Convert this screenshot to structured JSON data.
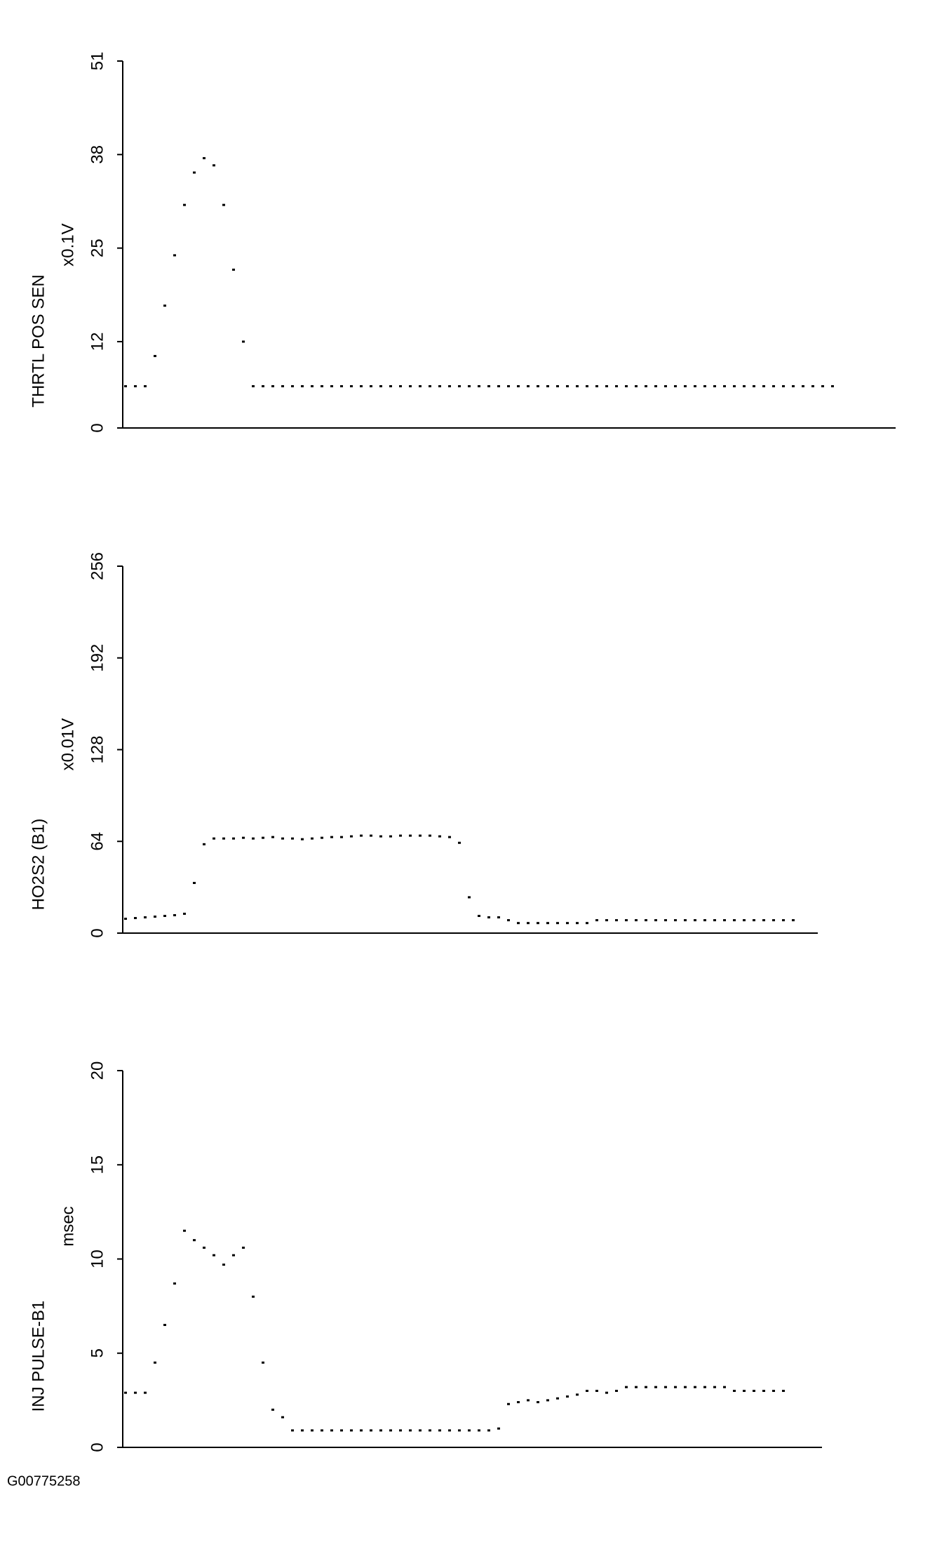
{
  "chart_data": [
    {
      "type": "line",
      "y_label": "THRTL POS SEN",
      "unit_label": "x0.1V",
      "color": "#000000",
      "ylim": [
        0,
        51
      ],
      "yticks": [
        0,
        12,
        25,
        38,
        51
      ],
      "values": [
        5.8,
        5.8,
        5.8,
        10,
        17,
        24,
        31,
        35.5,
        37.5,
        36.5,
        31,
        22,
        12,
        5.8,
        5.8,
        5.8,
        5.8,
        5.8,
        5.8,
        5.8,
        5.8,
        5.8,
        5.8,
        5.8,
        5.8,
        5.8,
        5.8,
        5.8,
        5.8,
        5.8,
        5.8,
        5.8,
        5.8,
        5.8,
        5.8,
        5.8,
        5.8,
        5.8,
        5.8,
        5.8,
        5.8,
        5.8,
        5.8,
        5.8,
        5.8,
        5.8,
        5.8,
        5.8,
        5.8,
        5.8,
        5.8,
        5.8,
        5.8,
        5.8,
        5.8,
        5.8,
        5.8,
        5.8,
        5.8,
        5.8,
        5.8,
        5.8,
        5.8,
        5.8,
        5.8,
        5.8,
        5.8,
        5.8,
        5.8,
        5.8,
        5.8,
        5.8,
        5.8
      ]
    },
    {
      "type": "line",
      "y_label": "HO2S2 (B1)",
      "unit_label": "x0.01V",
      "color": "#000000",
      "ylim": [
        0,
        256
      ],
      "yticks": [
        0,
        64,
        128,
        192,
        256
      ],
      "values": [
        10,
        10.5,
        11,
        11.5,
        12,
        12.5,
        13.5,
        35,
        62,
        66,
        66,
        66,
        66.5,
        66,
        66.5,
        67,
        66,
        66,
        65.5,
        66,
        66.5,
        67,
        67,
        67.5,
        68,
        68,
        67.5,
        67.5,
        68,
        68,
        68,
        68,
        67.5,
        67,
        63,
        25,
        12,
        11,
        11,
        9,
        7,
        7,
        7,
        7,
        7,
        7,
        7,
        7,
        9,
        9,
        9,
        9,
        9,
        9,
        9,
        9,
        9,
        9,
        9,
        9,
        9,
        9,
        9,
        9,
        9,
        9,
        9,
        9,
        9
      ]
    },
    {
      "type": "line",
      "y_label": "INJ PULSE-B1",
      "unit_label": "msec",
      "color": "#000000",
      "ylim": [
        0,
        20
      ],
      "yticks": [
        0,
        5,
        10,
        15,
        20
      ],
      "values": [
        2.9,
        2.9,
        2.9,
        4.5,
        6.5,
        8.7,
        11.5,
        11,
        10.6,
        10.2,
        9.7,
        10.2,
        10.6,
        8,
        4.5,
        2,
        1.6,
        0.9,
        0.9,
        0.9,
        0.9,
        0.9,
        0.9,
        0.9,
        0.9,
        0.9,
        0.9,
        0.9,
        0.9,
        0.9,
        0.9,
        0.9,
        0.9,
        0.9,
        0.9,
        0.9,
        0.9,
        0.9,
        1,
        2.3,
        2.4,
        2.5,
        2.4,
        2.5,
        2.6,
        2.7,
        2.8,
        3,
        3,
        2.9,
        3,
        3.2,
        3.2,
        3.2,
        3.2,
        3.2,
        3.2,
        3.2,
        3.2,
        3.2,
        3.2,
        3.2,
        3,
        3,
        3,
        3,
        3,
        3
      ]
    }
  ],
  "footer": "G00775258"
}
